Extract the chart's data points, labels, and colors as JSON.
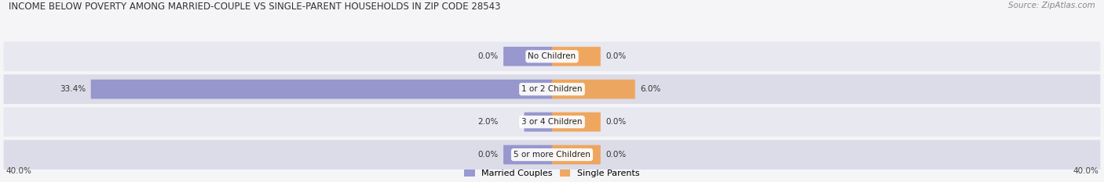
{
  "title": "INCOME BELOW POVERTY AMONG MARRIED-COUPLE VS SINGLE-PARENT HOUSEHOLDS IN ZIP CODE 28543",
  "source": "Source: ZipAtlas.com",
  "categories": [
    "No Children",
    "1 or 2 Children",
    "3 or 4 Children",
    "5 or more Children"
  ],
  "married_values": [
    0.0,
    33.4,
    2.0,
    0.0
  ],
  "single_values": [
    0.0,
    6.0,
    0.0,
    0.0
  ],
  "married_color": "#9090cc",
  "single_color": "#f0a050",
  "row_bg_even": "#e8e8f0",
  "row_bg_odd": "#dcdce8",
  "axis_limit": 40.0,
  "title_fontsize": 8.5,
  "source_fontsize": 7.5,
  "value_fontsize": 7.5,
  "category_fontsize": 7.5,
  "legend_fontsize": 8.0,
  "axis_label_fontsize": 7.5,
  "background_color": "#f5f5f8"
}
